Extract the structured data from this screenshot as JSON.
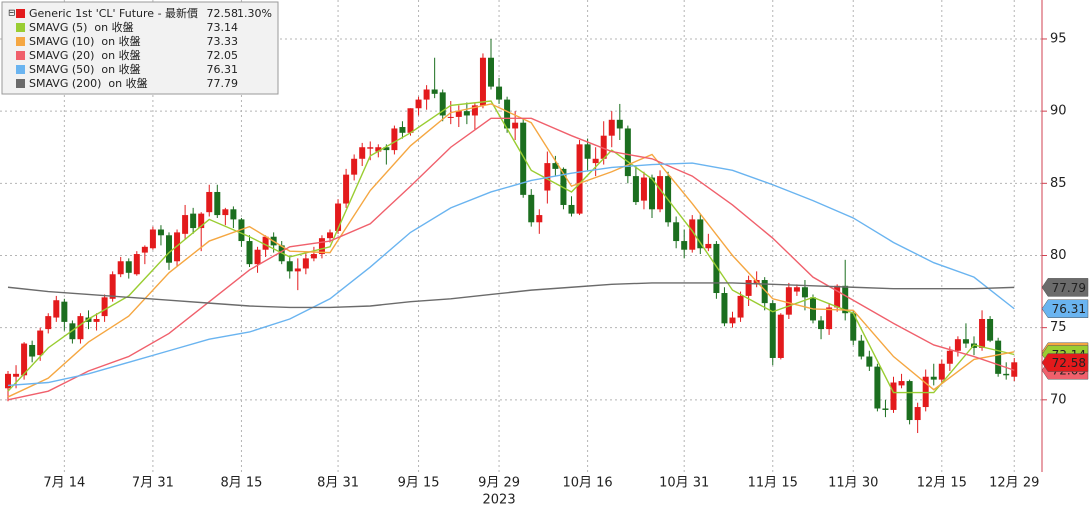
{
  "chart_data": {
    "type": "candlestick",
    "ylim": [
      65,
      97.7
    ],
    "yticks": [
      70,
      75,
      80,
      85,
      90,
      95
    ],
    "grid": true,
    "legend": "top-left",
    "categories": [
      null,
      null,
      null,
      null,
      null,
      null,
      null,
      "7月 14",
      null,
      null,
      null,
      null,
      null,
      null,
      null,
      null,
      null,
      null,
      "7月 31",
      null,
      null,
      null,
      null,
      null,
      null,
      null,
      null,
      null,
      null,
      "8月 15",
      null,
      null,
      null,
      null,
      null,
      null,
      null,
      null,
      null,
      null,
      null,
      "8月 31",
      null,
      null,
      null,
      null,
      null,
      null,
      null,
      null,
      null,
      "9月 15",
      null,
      null,
      null,
      null,
      null,
      null,
      null,
      null,
      null,
      "9月 29",
      null,
      null,
      null,
      null,
      null,
      null,
      null,
      null,
      null,
      null,
      "10月 16",
      null,
      null,
      null,
      null,
      null,
      null,
      null,
      null,
      null,
      null,
      null,
      "10月 31",
      null,
      null,
      null,
      null,
      null,
      null,
      null,
      null,
      null,
      null,
      "11月 15",
      null,
      null,
      null,
      null,
      null,
      null,
      null,
      null,
      null,
      "11月 30",
      null,
      null,
      null,
      null,
      null,
      null,
      null,
      null,
      null,
      null,
      "12月 15",
      null,
      null,
      null,
      null,
      null,
      null,
      null,
      null,
      "12月 29"
    ],
    "categories2": [
      null,
      null,
      null,
      null,
      null,
      null,
      null,
      null,
      null,
      null,
      null,
      null,
      null,
      null,
      null,
      null,
      null,
      null,
      null,
      null,
      null,
      null,
      null,
      null,
      null,
      null,
      null,
      null,
      null,
      null,
      null,
      null,
      null,
      null,
      null,
      null,
      null,
      null,
      null,
      null,
      null,
      null,
      null,
      null,
      null,
      null,
      null,
      null,
      null,
      null,
      null,
      null,
      null,
      null,
      null,
      null,
      null,
      null,
      null,
      null,
      null,
      "2023",
      null,
      null,
      null,
      null,
      null,
      null,
      null,
      null,
      null,
      null,
      null,
      null,
      null,
      null,
      null,
      null,
      null,
      null,
      null,
      null,
      null,
      null,
      null,
      null,
      null,
      null,
      null,
      null,
      null,
      null,
      null,
      null,
      null,
      null,
      null,
      null,
      null,
      null,
      null,
      null,
      null,
      null,
      null,
      null,
      null,
      null,
      null,
      null,
      null,
      null,
      null,
      null,
      null,
      null,
      null,
      null,
      null,
      null,
      null,
      null,
      null,
      null,
      null,
      null
    ],
    "candles": {
      "name": "Generic 1st 'CL' Future - 最新價",
      "up_color": "#e31a1c",
      "down_color": "#1b6e1f",
      "last": 72.58,
      "change": {
        "value": 1.3,
        "label": "1.30%"
      },
      "open": [
        70.8,
        71.6,
        71.7,
        73.8,
        73.1,
        74.9,
        75.7,
        76.8,
        75.3,
        74.2,
        75.7,
        75.4,
        75.8,
        77.0,
        78.7,
        79.6,
        78.7,
        80.2,
        80.5,
        81.8,
        81.4,
        79.6,
        81.5,
        82.9,
        81.9,
        83.0,
        84.4,
        82.8,
        83.2,
        82.5,
        81.0,
        79.4,
        80.4,
        81.3,
        80.7,
        79.6,
        78.9,
        79.1,
        79.8,
        80.1,
        81.2,
        81.7,
        83.6,
        85.6,
        86.7,
        87.4,
        87.2,
        87.5,
        87.3,
        88.9,
        88.5,
        90.2,
        90.8,
        91.5,
        91.3,
        89.6,
        89.6,
        90.0,
        89.7,
        90.4,
        93.7,
        91.7,
        90.8,
        88.8,
        89.2,
        84.2,
        82.3,
        84.5,
        86.4,
        86.0,
        83.5,
        82.9,
        87.7,
        86.4,
        86.7,
        88.3,
        89.4,
        88.8,
        85.5,
        83.8,
        85.4,
        83.2,
        85.5,
        82.3,
        81.0,
        80.4,
        82.5,
        80.5,
        80.8,
        77.4,
        75.3,
        75.7,
        77.2,
        78.0,
        78.3,
        76.7,
        72.9,
        75.9,
        77.5,
        77.8,
        77.1,
        75.5,
        74.9,
        76.4,
        77.9,
        76.0,
        74.1,
        73.0,
        72.3,
        69.4,
        69.3,
        71.0,
        71.3,
        68.6,
        69.5,
        71.6,
        71.4,
        72.5,
        73.4,
        74.2,
        73.9,
        73.6,
        75.6,
        74.1,
        71.8,
        71.6
      ],
      "high": [
        72.0,
        72.4,
        74.0,
        74.1,
        75.0,
        76.0,
        77.2,
        77.0,
        75.5,
        76.0,
        76.2,
        76.0,
        77.3,
        78.9,
        79.9,
        79.8,
        80.3,
        80.7,
        82.0,
        82.1,
        81.6,
        81.8,
        83.5,
        83.3,
        83.0,
        84.9,
        84.9,
        83.3,
        83.4,
        82.6,
        81.4,
        80.6,
        81.4,
        81.6,
        81.0,
        80.0,
        79.8,
        80.2,
        80.6,
        81.4,
        81.8,
        83.9,
        86.0,
        87.0,
        87.8,
        87.9,
        87.7,
        87.7,
        89.0,
        89.3,
        90.2,
        91.0,
        91.8,
        93.7,
        91.5,
        90.7,
        90.4,
        90.6,
        90.6,
        94.0,
        95.0,
        92.3,
        91.0,
        90.0,
        89.5,
        84.6,
        83.2,
        87.2,
        86.9,
        86.1,
        84.1,
        88.0,
        88.1,
        87.5,
        89.3,
        90.0,
        90.5,
        89.0,
        86.2,
        85.8,
        85.6,
        85.9,
        85.8,
        82.7,
        81.8,
        82.8,
        82.9,
        81.5,
        81.0,
        77.8,
        76.1,
        77.5,
        78.6,
        78.9,
        78.5,
        76.9,
        76.0,
        78.1,
        78.0,
        78.3,
        77.3,
        75.8,
        76.7,
        78.0,
        79.7,
        76.2,
        74.5,
        73.4,
        72.5,
        70.0,
        71.6,
        71.8,
        71.4,
        69.8,
        72.1,
        72.5,
        72.8,
        73.7,
        74.4,
        75.3,
        74.4,
        76.2,
        75.8,
        74.3,
        72.6,
        72.9
      ],
      "low": [
        69.9,
        70.8,
        71.4,
        72.6,
        72.7,
        74.6,
        75.4,
        74.8,
        73.9,
        73.9,
        74.9,
        74.8,
        75.4,
        76.8,
        78.5,
        78.4,
        78.6,
        79.4,
        80.4,
        80.7,
        79.0,
        79.2,
        81.1,
        81.5,
        80.3,
        82.7,
        82.6,
        82.1,
        81.9,
        80.6,
        79.2,
        78.8,
        79.9,
        80.2,
        79.4,
        78.4,
        77.6,
        78.7,
        79.6,
        79.8,
        80.9,
        81.5,
        83.3,
        85.2,
        86.2,
        86.6,
        86.8,
        86.3,
        87.0,
        88.1,
        88.3,
        89.7,
        90.1,
        90.9,
        89.3,
        89.1,
        88.9,
        89.1,
        88.7,
        90.2,
        91.5,
        90.5,
        88.5,
        88.0,
        84.0,
        82.0,
        81.5,
        83.6,
        85.5,
        83.2,
        82.7,
        82.8,
        85.9,
        85.5,
        86.3,
        87.5,
        88.0,
        85.0,
        83.5,
        83.2,
        82.6,
        83.0,
        82.0,
        80.5,
        79.8,
        80.2,
        80.1,
        80.3,
        77.0,
        75.1,
        75.0,
        75.4,
        76.5,
        77.8,
        76.2,
        72.4,
        72.8,
        75.6,
        77.2,
        76.2,
        75.3,
        74.2,
        74.5,
        76.1,
        75.5,
        73.8,
        72.8,
        72.0,
        69.2,
        68.8,
        69.1,
        70.8,
        68.3,
        67.7,
        69.2,
        71.0,
        71.1,
        72.0,
        73.0,
        73.6,
        73.1,
        73.4,
        74.0,
        71.6,
        71.4,
        71.3
      ],
      "close": [
        71.8,
        71.8,
        73.9,
        73.0,
        74.8,
        75.8,
        76.9,
        75.4,
        74.2,
        75.8,
        75.4,
        75.6,
        77.1,
        78.7,
        79.6,
        78.8,
        80.1,
        80.6,
        81.8,
        81.4,
        79.5,
        81.6,
        82.8,
        81.9,
        82.9,
        84.4,
        82.8,
        83.2,
        82.5,
        81.0,
        79.4,
        80.4,
        81.3,
        80.7,
        79.6,
        78.9,
        79.1,
        79.8,
        80.1,
        81.2,
        81.6,
        83.6,
        85.6,
        86.7,
        87.5,
        87.5,
        87.5,
        87.3,
        88.8,
        88.5,
        90.2,
        90.8,
        91.5,
        91.2,
        89.7,
        89.6,
        90.0,
        89.7,
        90.4,
        93.7,
        91.7,
        90.8,
        88.8,
        89.2,
        84.2,
        82.3,
        82.8,
        86.4,
        86.0,
        83.5,
        82.9,
        87.7,
        86.7,
        86.7,
        88.3,
        89.4,
        88.8,
        85.5,
        83.7,
        85.4,
        83.2,
        85.5,
        82.3,
        81.0,
        80.4,
        82.5,
        80.5,
        80.8,
        77.4,
        75.3,
        75.7,
        77.2,
        78.3,
        78.3,
        76.7,
        72.9,
        75.9,
        77.8,
        77.8,
        77.1,
        75.5,
        74.9,
        76.4,
        77.9,
        76.0,
        74.1,
        73.0,
        72.3,
        69.4,
        69.3,
        71.2,
        71.3,
        68.6,
        69.5,
        71.6,
        71.4,
        72.5,
        73.4,
        74.2,
        73.9,
        73.6,
        75.6,
        74.1,
        71.8,
        71.7,
        72.6
      ]
    },
    "series": [
      {
        "name": "SMAVG (5)  on 收盤",
        "color": "#9acd32",
        "last": 73.14,
        "x": [
          0,
          5,
          10,
          15,
          20,
          25,
          30,
          35,
          40,
          45,
          50,
          55,
          60,
          65,
          70,
          75,
          80,
          85,
          90,
          95,
          100,
          105,
          110,
          115,
          120,
          125
        ],
        "values": [
          70.6,
          73.6,
          75.6,
          77.2,
          80.2,
          82.5,
          81.3,
          79.9,
          80.6,
          86.9,
          88.5,
          90.4,
          90.7,
          85.9,
          84.4,
          87.3,
          85.3,
          81.7,
          77.6,
          76.1,
          77.1,
          76.0,
          70.5,
          70.5,
          73.8,
          73.14
        ]
      },
      {
        "name": "SMAVG (10)  on 收盤",
        "color": "#f5a742",
        "last": 73.33,
        "x": [
          0,
          5,
          10,
          15,
          20,
          25,
          30,
          35,
          40,
          45,
          50,
          55,
          60,
          65,
          70,
          75,
          80,
          85,
          90,
          95,
          100,
          105,
          110,
          115,
          120,
          125
        ],
        "values": [
          70.2,
          71.5,
          74.0,
          75.8,
          78.8,
          81.0,
          82.0,
          80.3,
          80.2,
          84.5,
          87.6,
          89.9,
          90.5,
          89.2,
          84.8,
          85.8,
          87.0,
          83.6,
          80.0,
          77.0,
          76.3,
          76.2,
          73.0,
          70.7,
          72.8,
          73.33
        ]
      },
      {
        "name": "SMAVG (20)  on 收盤",
        "color": "#f0606c",
        "last": 72.05,
        "x": [
          0,
          5,
          10,
          15,
          20,
          25,
          30,
          35,
          40,
          45,
          50,
          55,
          60,
          65,
          70,
          75,
          80,
          85,
          90,
          95,
          100,
          105,
          110,
          115,
          120,
          125
        ],
        "values": [
          70.0,
          70.6,
          72.0,
          73.0,
          74.6,
          76.8,
          79.0,
          80.6,
          81.0,
          82.2,
          84.8,
          87.5,
          89.5,
          89.5,
          88.3,
          87.2,
          86.7,
          85.5,
          83.5,
          81.2,
          78.5,
          76.9,
          75.3,
          73.8,
          73.0,
          72.05
        ]
      },
      {
        "name": "SMAVG (50)  on 收盤",
        "color": "#6ab4f0",
        "last": 76.31,
        "x": [
          0,
          5,
          10,
          15,
          20,
          25,
          30,
          35,
          40,
          45,
          50,
          55,
          60,
          65,
          70,
          75,
          80,
          85,
          90,
          95,
          100,
          105,
          110,
          115,
          120,
          125
        ],
        "values": [
          71.0,
          71.2,
          71.8,
          72.6,
          73.4,
          74.2,
          74.7,
          75.6,
          77.0,
          79.2,
          81.6,
          83.3,
          84.4,
          85.2,
          85.7,
          86.1,
          86.3,
          86.4,
          85.9,
          84.9,
          83.8,
          82.6,
          80.9,
          79.5,
          78.5,
          76.31
        ]
      },
      {
        "name": "SMAVG (200)  on 收盤",
        "color": "#6b6b6b",
        "last": 77.79,
        "x": [
          0,
          5,
          10,
          15,
          20,
          25,
          30,
          35,
          40,
          45,
          50,
          55,
          60,
          65,
          70,
          75,
          80,
          85,
          90,
          95,
          100,
          105,
          110,
          115,
          120,
          125
        ],
        "values": [
          77.8,
          77.5,
          77.3,
          77.1,
          76.9,
          76.7,
          76.5,
          76.4,
          76.4,
          76.5,
          76.8,
          77.0,
          77.3,
          77.6,
          77.8,
          78.0,
          78.1,
          78.1,
          78.1,
          78.0,
          77.9,
          77.8,
          77.7,
          77.7,
          77.7,
          77.79
        ]
      }
    ]
  }
}
